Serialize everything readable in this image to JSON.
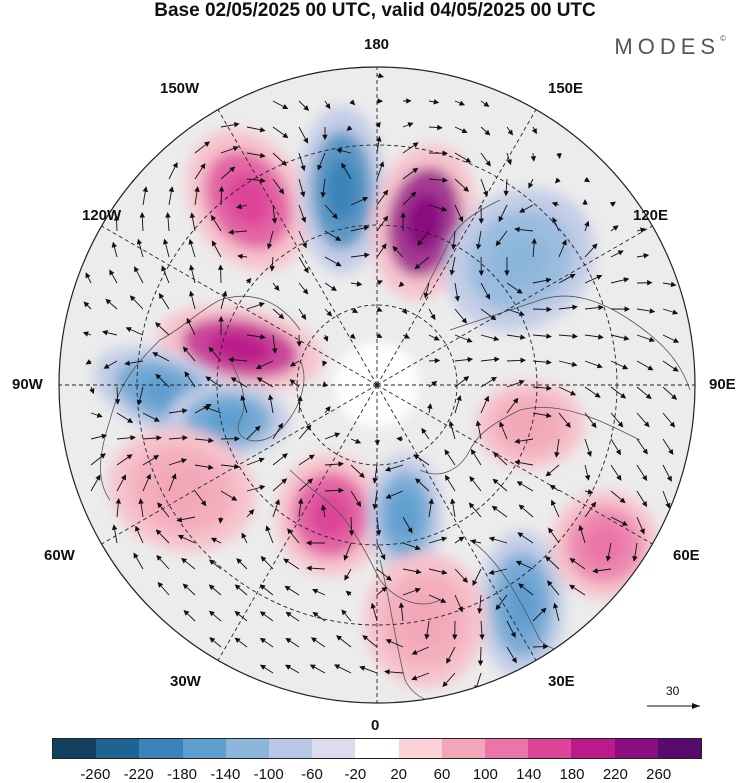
{
  "title": "Base 02/05/2025 00 UTC, valid 04/05/2025 00 UTC",
  "brand": {
    "text": "MODES",
    "mark": "©"
  },
  "longitude_labels": {
    "top": "180",
    "bottom": "0",
    "left": "90W",
    "right": "90E",
    "upper_left_1": "150W",
    "upper_left_2": "120W",
    "upper_right_1": "150E",
    "upper_right_2": "120E",
    "lower_left_1": "60W",
    "lower_left_2": "30W",
    "lower_right_1": "60E",
    "lower_right_2": "30E"
  },
  "reference_vector": {
    "label": "30"
  },
  "colorbar": {
    "colors": [
      "#12405f",
      "#1f6392",
      "#3a84ba",
      "#5f9fcf",
      "#8cb6dc",
      "#b9c9e5",
      "#dcdcee",
      "#ffffff",
      "#fbd3d6",
      "#f2a7b8",
      "#ea75a8",
      "#dc4598",
      "#bb1a8a",
      "#8a0e80",
      "#5a0a6c"
    ],
    "ticks": [
      "-260",
      "-220",
      "-180",
      "-140",
      "-100",
      "-60",
      "-20",
      "20",
      "60",
      "100",
      "140",
      "180",
      "220",
      "260"
    ]
  },
  "anomaly_centers": [
    {
      "sign": "positive",
      "value": 180,
      "color": "#dc4598"
    },
    {
      "sign": "negative",
      "value": -200,
      "color": "#3a84ba"
    },
    {
      "sign": "positive",
      "value": 230,
      "color": "#8a0e80"
    },
    {
      "sign": "negative",
      "value": -120,
      "color": "#8cb6dc"
    },
    {
      "sign": "positive",
      "value": 220,
      "color": "#bb1a8a"
    },
    {
      "sign": "negative",
      "value": -140,
      "color": "#5f9fcf"
    },
    {
      "sign": "negative",
      "value": -140,
      "color": "#5f9fcf"
    },
    {
      "sign": "positive",
      "value": 80,
      "color": "#f2a7b8"
    },
    {
      "sign": "positive",
      "value": 160,
      "color": "#dc4598"
    },
    {
      "sign": "negative",
      "value": -140,
      "color": "#5f9fcf"
    },
    {
      "sign": "positive",
      "value": 100,
      "color": "#f2a7b8"
    },
    {
      "sign": "negative",
      "value": -140,
      "color": "#5f9fcf"
    },
    {
      "sign": "positive",
      "value": 120,
      "color": "#ea75a8"
    },
    {
      "sign": "positive",
      "value": 80,
      "color": "#f2a7b8"
    }
  ]
}
